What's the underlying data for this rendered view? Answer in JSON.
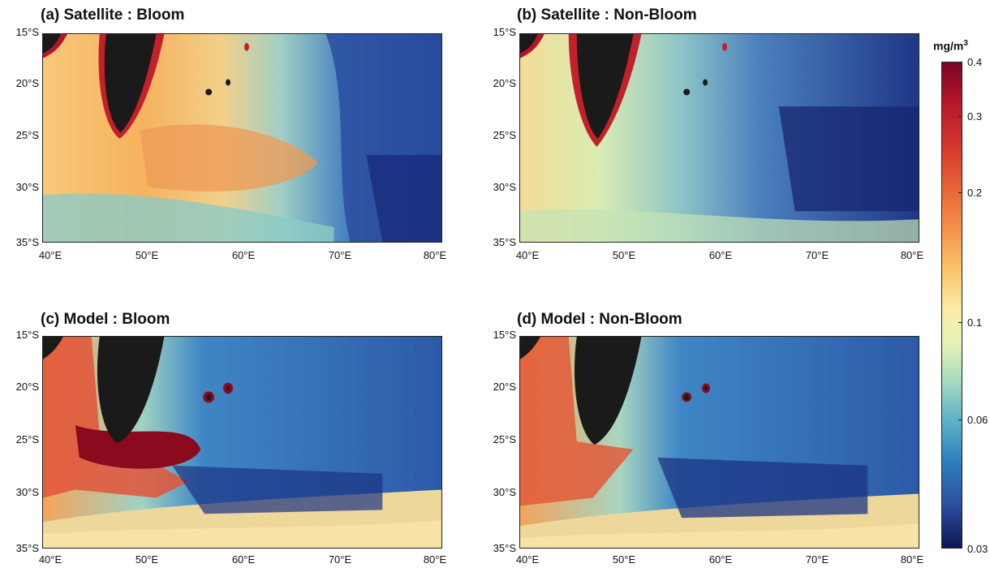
{
  "panels": [
    {
      "title": "(a) Satellite : Bloom"
    },
    {
      "title": "(b) Satellite : Non-Bloom"
    },
    {
      "title": "(c) Model : Bloom"
    },
    {
      "title": "(d) Model : Non-Bloom"
    }
  ],
  "axes": {
    "lat_labels": [
      "15°S",
      "20°S",
      "25°S",
      "30°S",
      "35°S"
    ],
    "lon_labels": [
      "40°E",
      "50°E",
      "60°E",
      "70°E",
      "80°E"
    ]
  },
  "colorbar": {
    "unit_base": "mg/m",
    "unit_exp": "3",
    "labels": [
      "0.4",
      "0.3",
      "0.2",
      "0.1",
      "0.06",
      "0.03"
    ],
    "scale": "log",
    "colors": [
      "#7b0325",
      "#d73a2e",
      "#fbbf66",
      "#fcecaa",
      "#a4d8c0",
      "#2f80bf",
      "#0e1656"
    ]
  },
  "colors": {
    "land": "#1a1a1a",
    "coast_high": "#8b0a1e"
  }
}
